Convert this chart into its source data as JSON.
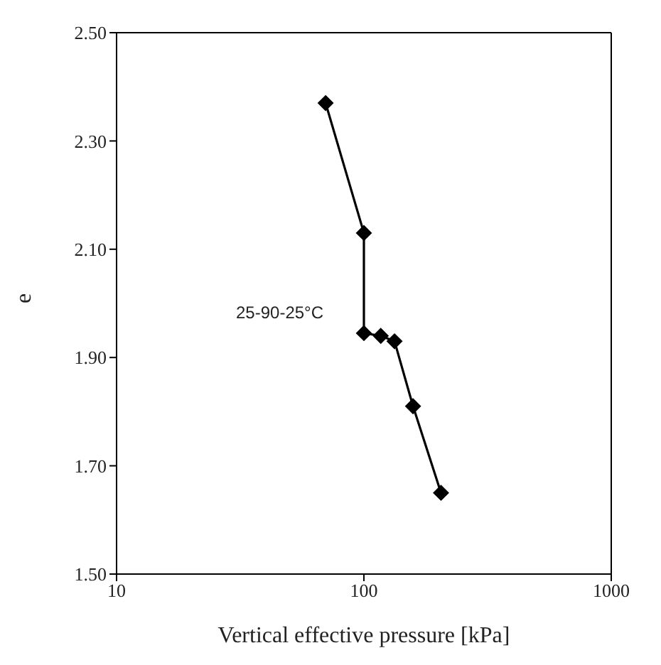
{
  "chart_data": {
    "type": "line",
    "xlabel": "Vertical effective pressure [kPa]",
    "ylabel": "e",
    "annotations": [
      "25-90-25°C"
    ],
    "log": "x",
    "xlim": [
      10,
      1000
    ],
    "xticks": [
      10,
      100,
      1000
    ],
    "ylim": [
      1.5,
      2.5
    ],
    "yticks": [
      {
        "value": 1.5,
        "label": "1.50"
      },
      {
        "value": 1.7,
        "label": "1.70"
      },
      {
        "value": 1.9,
        "label": "1.90"
      },
      {
        "value": 2.1,
        "label": "2.10"
      },
      {
        "value": 2.3,
        "label": "2.30"
      },
      {
        "value": 2.5,
        "label": "2.50"
      }
    ],
    "x": [
      70,
      100,
      100,
      117,
      133,
      158,
      205
    ],
    "series": [
      {
        "color": "#000000",
        "values": [
          2.37,
          2.13,
          1.945,
          1.94,
          1.93,
          1.81,
          1.65
        ]
      }
    ],
    "marker": "diamond",
    "line_style": "solid"
  }
}
